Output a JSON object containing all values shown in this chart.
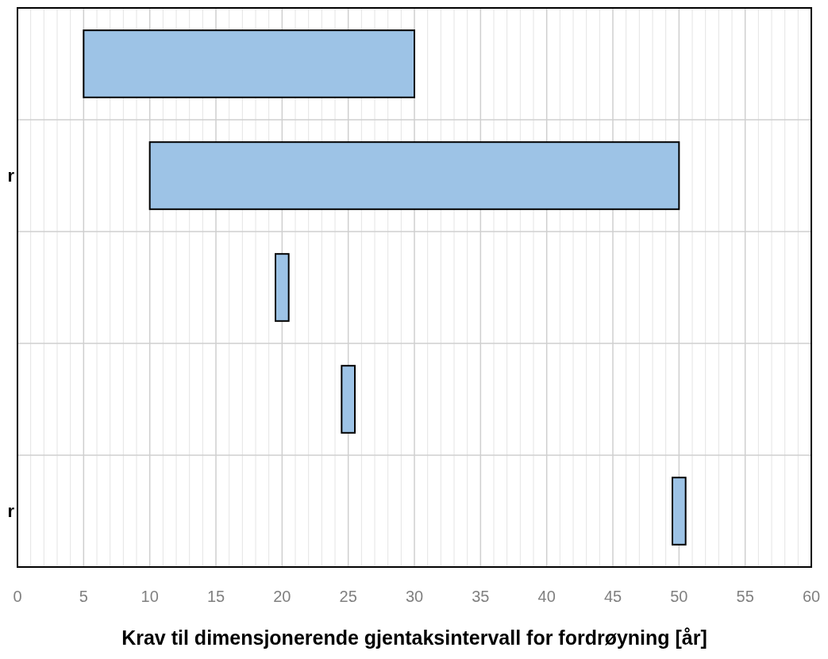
{
  "chart_data": {
    "type": "bar",
    "orientation": "horizontal",
    "categories": [
      null,
      "r",
      null,
      null,
      "r"
    ],
    "base": [
      5,
      10,
      19.5,
      24.5,
      49.5
    ],
    "values": [
      25,
      40,
      1,
      1,
      1
    ],
    "color": "#9dc3e6",
    "xlim": [
      0,
      60
    ],
    "xticks": [
      0,
      {
        "value": 1,
        "label": null
      },
      {
        "value": 2,
        "label": null
      },
      {
        "value": 3,
        "label": null
      },
      {
        "value": 4,
        "label": null
      },
      5,
      {
        "value": 6,
        "label": null
      },
      {
        "value": 7,
        "label": null
      },
      {
        "value": 8,
        "label": null
      },
      {
        "value": 9,
        "label": null
      },
      10,
      {
        "value": 11,
        "label": null
      },
      {
        "value": 12,
        "label": null
      },
      {
        "value": 13,
        "label": null
      },
      {
        "value": 14,
        "label": null
      },
      15,
      {
        "value": 16,
        "label": null
      },
      {
        "value": 17,
        "label": null
      },
      {
        "value": 18,
        "label": null
      },
      {
        "value": 19,
        "label": null
      },
      20,
      {
        "value": 21,
        "label": null
      },
      {
        "value": 22,
        "label": null
      },
      {
        "value": 23,
        "label": null
      },
      {
        "value": 24,
        "label": null
      },
      25,
      {
        "value": 26,
        "label": null
      },
      {
        "value": 27,
        "label": null
      },
      {
        "value": 28,
        "label": null
      },
      {
        "value": 29,
        "label": null
      },
      30,
      {
        "value": 31,
        "label": null
      },
      {
        "value": 32,
        "label": null
      },
      {
        "value": 33,
        "label": null
      },
      {
        "value": 34,
        "label": null
      },
      35,
      {
        "value": 36,
        "label": null
      },
      {
        "value": 37,
        "label": null
      },
      {
        "value": 38,
        "label": null
      },
      {
        "value": 39,
        "label": null
      },
      40,
      {
        "value": 41,
        "label": null
      },
      {
        "value": 42,
        "label": null
      },
      {
        "value": 43,
        "label": null
      },
      {
        "value": 44,
        "label": null
      },
      45,
      {
        "value": 46,
        "label": null
      },
      {
        "value": 47,
        "label": null
      },
      {
        "value": 48,
        "label": null
      },
      {
        "value": 49,
        "label": null
      },
      50,
      {
        "value": 51,
        "label": null
      },
      {
        "value": 52,
        "label": null
      },
      {
        "value": 53,
        "label": null
      },
      {
        "value": 54,
        "label": null
      },
      55,
      {
        "value": 56,
        "label": null
      },
      {
        "value": 57,
        "label": null
      },
      {
        "value": 58,
        "label": null
      },
      {
        "value": 59,
        "label": null
      },
      60
    ],
    "xlabel": "Krav til dimensjonerende gjentaksintervall for fordrøyning [år]",
    "grid": true
  }
}
